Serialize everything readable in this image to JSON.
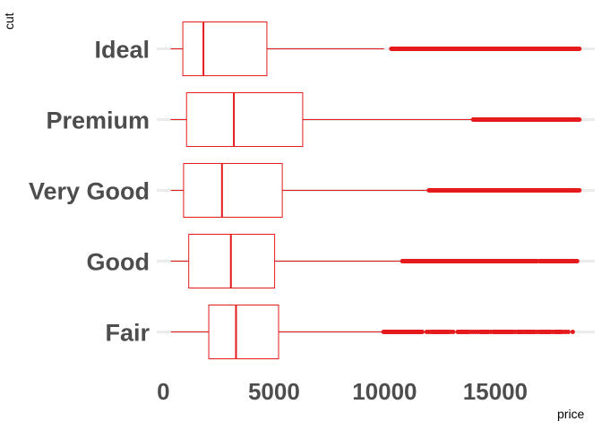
{
  "chart_data": {
    "type": "boxplot",
    "orientation": "horizontal",
    "xlabel": "price",
    "ylabel": "cut",
    "xlim": [
      -300,
      19500
    ],
    "xticks": [
      0,
      5000,
      10000,
      15000
    ],
    "xtick_labels": [
      "0",
      "5000",
      "10000",
      "15000"
    ],
    "grid": true,
    "colors": {
      "box": "#e41a1c",
      "grid": "#ebebeb",
      "tick_label": "#4d4d4d"
    },
    "categories": [
      "Ideal",
      "Premium",
      "Very Good",
      "Good",
      "Fair"
    ],
    "boxes": [
      {
        "category": "Ideal",
        "whisker_low": 326,
        "q1": 878,
        "median": 1810,
        "q3": 4678,
        "whisker_high": 9970,
        "outliers_dense": [
          [
            10300,
            18800
          ]
        ],
        "outliers_sparse": []
      },
      {
        "category": "Premium",
        "whisker_low": 326,
        "q1": 1046,
        "median": 3185,
        "q3": 6296,
        "whisker_high": 14000,
        "outliers_dense": [
          [
            14000,
            18800
          ]
        ],
        "outliers_sparse": []
      },
      {
        "category": "Very Good",
        "whisker_low": 336,
        "q1": 912,
        "median": 2648,
        "q3": 5373,
        "whisker_high": 12000,
        "outliers_dense": [
          [
            12000,
            18800
          ]
        ],
        "outliers_sparse": []
      },
      {
        "category": "Good",
        "whisker_low": 327,
        "q1": 1145,
        "median": 3050,
        "q3": 5028,
        "whisker_high": 10800,
        "outliers_dense": [
          [
            10800,
            16900
          ],
          [
            17000,
            18700
          ]
        ],
        "outliers_sparse": []
      },
      {
        "category": "Fair",
        "whisker_low": 337,
        "q1": 2050,
        "median": 3282,
        "q3": 5206,
        "whisker_high": 9900,
        "outliers_dense": [
          [
            9950,
            11200
          ],
          [
            11300,
            11700
          ],
          [
            12100,
            12900
          ],
          [
            13300,
            13800
          ],
          [
            14300,
            14700
          ],
          [
            14900,
            15800
          ],
          [
            16000,
            16300
          ],
          [
            16400,
            16800
          ],
          [
            17000,
            17500
          ],
          [
            17700,
            18000
          ]
        ],
        "outliers_sparse": [
          11250,
          11900,
          12000,
          13000,
          13100,
          13900,
          14000,
          14100,
          14200,
          14800,
          15900,
          16350,
          16900,
          17600,
          18100,
          18200,
          18300,
          18500
        ]
      }
    ]
  }
}
